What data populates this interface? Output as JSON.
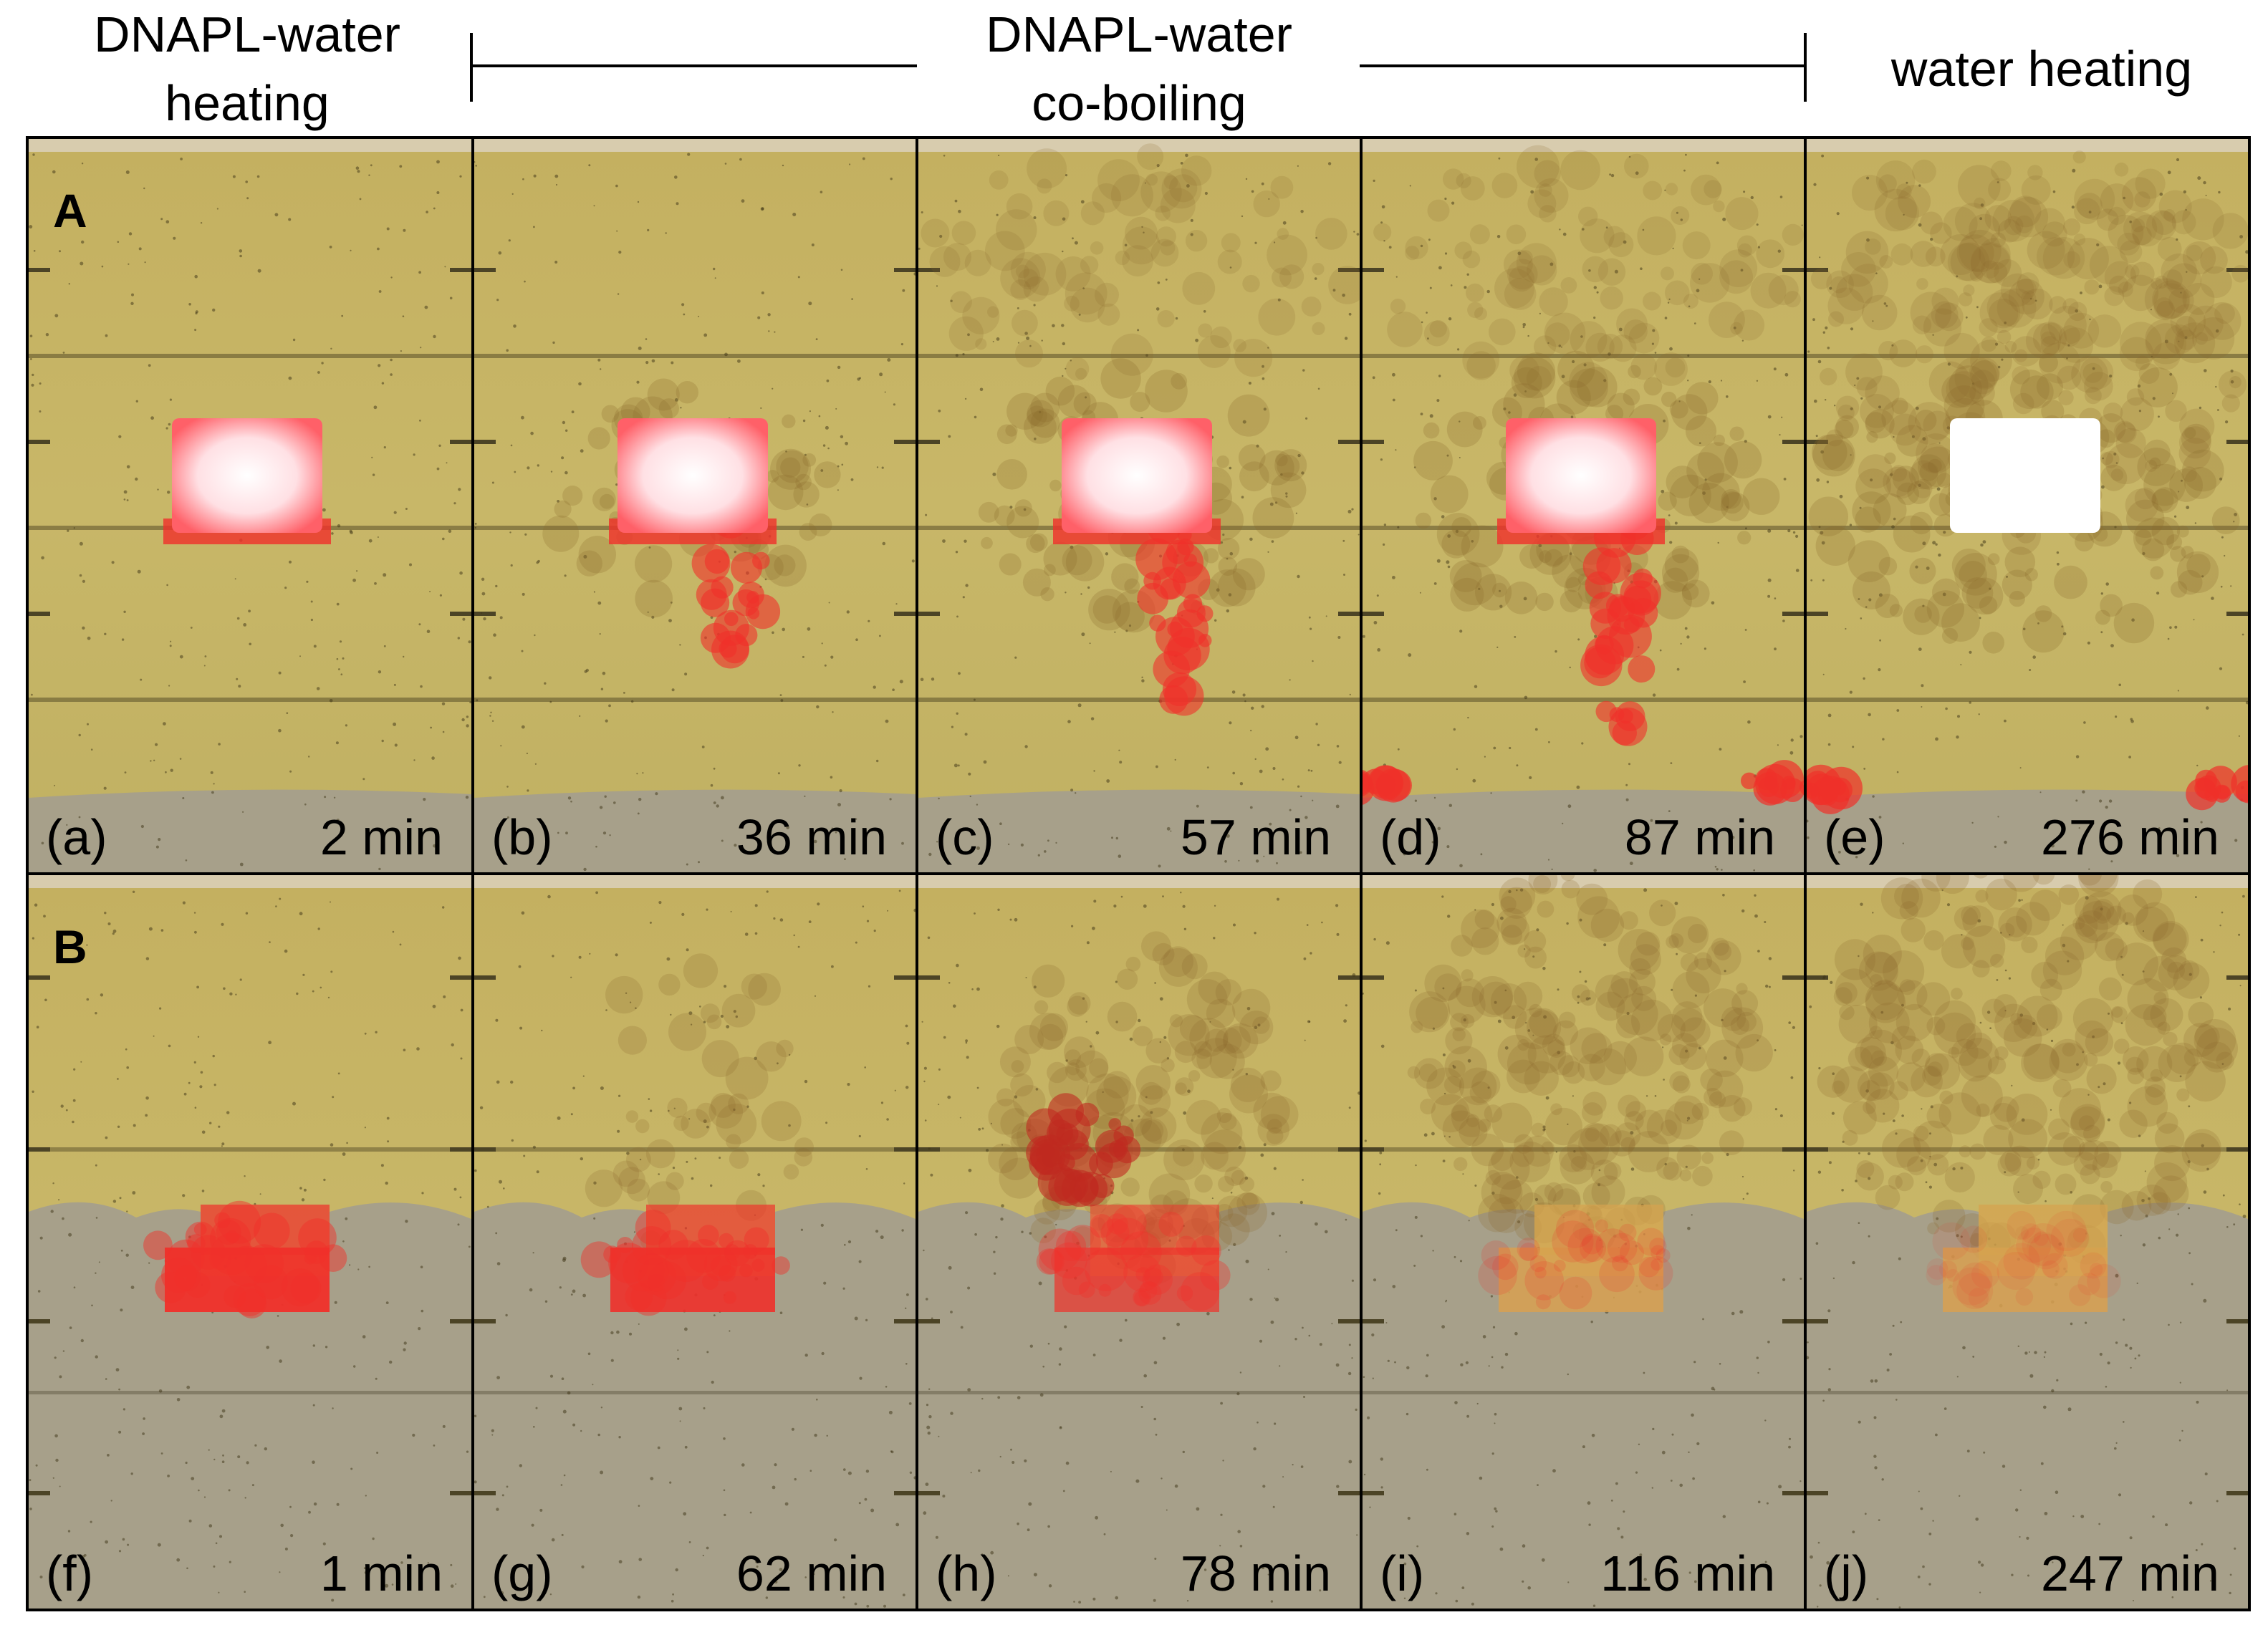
{
  "headers": {
    "phase1": "DNAPL-water\nheating",
    "phase2": "DNAPL-water\nco-boiling",
    "phase3": "water heating"
  },
  "rows": [
    {
      "label": "A",
      "panels": [
        {
          "label": "(a)",
          "time": "2 min"
        },
        {
          "label": "(b)",
          "time": "36 min"
        },
        {
          "label": "(c)",
          "time": "57 min"
        },
        {
          "label": "(d)",
          "time": "87 min"
        },
        {
          "label": "(e)",
          "time": "276 min"
        }
      ]
    },
    {
      "label": "B",
      "panels": [
        {
          "label": "(f)",
          "time": "1 min"
        },
        {
          "label": "(g)",
          "time": "62 min"
        },
        {
          "label": "(h)",
          "time": "78 min"
        },
        {
          "label": "(i)",
          "time": "116 min"
        },
        {
          "label": "(j)",
          "time": "247 min"
        }
      ]
    }
  ],
  "colors": {
    "sand": "#c8b768",
    "grey_water": "#a7a08a",
    "dnapl_red": "#f0302a",
    "steam_brown": "#8c6b2c",
    "frame_black": "#000000"
  }
}
